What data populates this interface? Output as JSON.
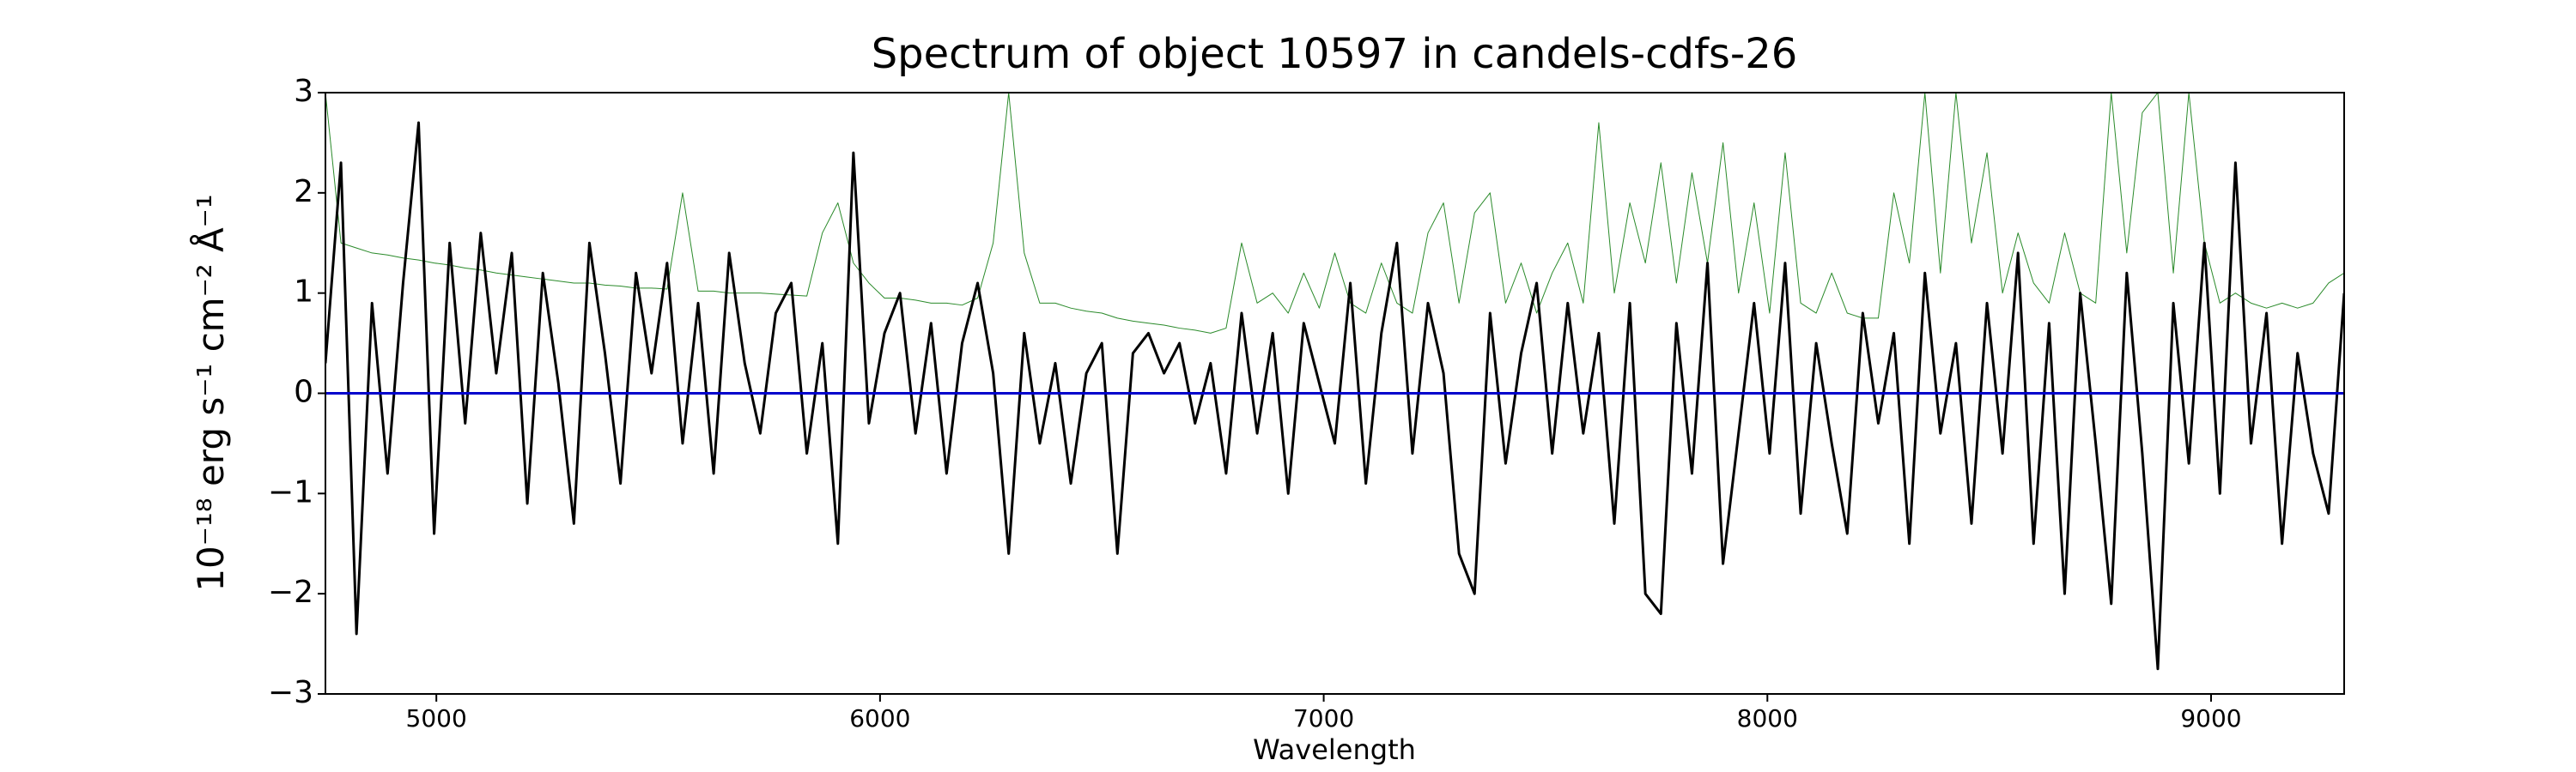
{
  "chart_data": {
    "type": "line",
    "title": "Spectrum of object 10597 in candels-cdfs-26",
    "xlabel": "Wavelength",
    "ylabel": "10⁻¹⁸ erg s⁻¹ cm⁻² Å⁻¹",
    "xlim": [
      4750,
      9300
    ],
    "ylim": [
      -3,
      3
    ],
    "xticks": [
      5000,
      6000,
      7000,
      8000,
      9000
    ],
    "yticks": [
      {
        "value": -3,
        "label": "−3"
      },
      {
        "value": -2,
        "label": "−2"
      },
      {
        "value": -1,
        "label": "−1"
      },
      0,
      1,
      2,
      3
    ],
    "grid": false,
    "x": [
      4750,
      4785,
      4820,
      4855,
      4890,
      4925,
      4960,
      4995,
      5030,
      5065,
      5100,
      5135,
      5170,
      5205,
      5240,
      5275,
      5310,
      5345,
      5380,
      5415,
      5450,
      5485,
      5520,
      5555,
      5590,
      5625,
      5660,
      5695,
      5730,
      5765,
      5800,
      5835,
      5870,
      5905,
      5940,
      5975,
      6010,
      6045,
      6080,
      6115,
      6150,
      6185,
      6220,
      6255,
      6290,
      6325,
      6360,
      6395,
      6430,
      6465,
      6500,
      6535,
      6570,
      6605,
      6640,
      6675,
      6710,
      6745,
      6780,
      6815,
      6850,
      6885,
      6920,
      6955,
      6990,
      7025,
      7060,
      7095,
      7130,
      7165,
      7200,
      7235,
      7270,
      7305,
      7340,
      7375,
      7410,
      7445,
      7480,
      7515,
      7550,
      7585,
      7620,
      7655,
      7690,
      7725,
      7760,
      7795,
      7830,
      7865,
      7900,
      7935,
      7970,
      8005,
      8040,
      8075,
      8110,
      8145,
      8180,
      8215,
      8250,
      8285,
      8320,
      8355,
      8390,
      8425,
      8460,
      8495,
      8530,
      8565,
      8600,
      8635,
      8670,
      8705,
      8740,
      8775,
      8810,
      8845,
      8880,
      8915,
      8950,
      8985,
      9020,
      9055,
      9090,
      9125,
      9160,
      9195,
      9230,
      9265,
      9300
    ],
    "series": [
      {
        "color": "#2a8a2a",
        "width": 1,
        "values": [
          3.0,
          1.5,
          1.45,
          1.4,
          1.38,
          1.35,
          1.33,
          1.3,
          1.28,
          1.25,
          1.23,
          1.2,
          1.18,
          1.16,
          1.14,
          1.12,
          1.1,
          1.1,
          1.08,
          1.07,
          1.05,
          1.05,
          1.04,
          2.0,
          1.02,
          1.02,
          1.0,
          1.0,
          1.0,
          0.99,
          0.98,
          0.97,
          1.6,
          1.9,
          1.3,
          1.1,
          0.95,
          0.95,
          0.93,
          0.9,
          0.9,
          0.88,
          0.95,
          1.5,
          3.0,
          1.4,
          0.9,
          0.9,
          0.85,
          0.82,
          0.8,
          0.75,
          0.72,
          0.7,
          0.68,
          0.65,
          0.63,
          0.6,
          0.65,
          1.5,
          0.9,
          1.0,
          0.8,
          1.2,
          0.85,
          1.4,
          0.9,
          0.8,
          1.3,
          0.9,
          0.8,
          1.6,
          1.9,
          0.9,
          1.8,
          2.0,
          0.9,
          1.3,
          0.8,
          1.2,
          1.5,
          0.9,
          2.7,
          1.0,
          1.9,
          1.3,
          2.3,
          1.1,
          2.2,
          1.3,
          2.5,
          1.0,
          1.9,
          0.8,
          2.4,
          0.9,
          0.8,
          1.2,
          0.8,
          0.75,
          0.75,
          2.0,
          1.3,
          3.0,
          1.2,
          3.0,
          1.5,
          2.4,
          1.0,
          1.6,
          1.1,
          0.9,
          1.6,
          1.0,
          0.9,
          3.0,
          1.4,
          2.8,
          3.0,
          1.2,
          3.0,
          1.5,
          0.9,
          1.0,
          0.9,
          0.85,
          0.9,
          0.85,
          0.9,
          1.1,
          1.2
        ]
      },
      {
        "color": "#000000",
        "width": 3,
        "values": [
          0.3,
          2.3,
          -2.4,
          0.9,
          -0.8,
          1.1,
          2.7,
          -1.4,
          1.5,
          -0.3,
          1.6,
          0.2,
          1.4,
          -1.1,
          1.2,
          0.1,
          -1.3,
          1.5,
          0.4,
          -0.9,
          1.2,
          0.2,
          1.3,
          -0.5,
          0.9,
          -0.8,
          1.4,
          0.3,
          -0.4,
          0.8,
          1.1,
          -0.6,
          0.5,
          -1.5,
          2.4,
          -0.3,
          0.6,
          1.0,
          -0.4,
          0.7,
          -0.8,
          0.5,
          1.1,
          0.2,
          -1.6,
          0.6,
          -0.5,
          0.3,
          -0.9,
          0.2,
          0.5,
          -1.6,
          0.4,
          0.6,
          0.2,
          0.5,
          -0.3,
          0.3,
          -0.8,
          0.8,
          -0.4,
          0.6,
          -1.0,
          0.7,
          0.1,
          -0.5,
          1.1,
          -0.9,
          0.6,
          1.5,
          -0.6,
          0.9,
          0.2,
          -1.6,
          -2.0,
          0.8,
          -0.7,
          0.4,
          1.1,
          -0.6,
          0.9,
          -0.4,
          0.6,
          -1.3,
          0.9,
          -2.0,
          -2.2,
          0.7,
          -0.8,
          1.3,
          -1.7,
          -0.4,
          0.9,
          -0.6,
          1.3,
          -1.2,
          0.5,
          -0.5,
          -1.4,
          0.8,
          -0.3,
          0.6,
          -1.5,
          1.2,
          -0.4,
          0.5,
          -1.3,
          0.9,
          -0.6,
          1.4,
          -1.5,
          0.7,
          -2.0,
          1.0,
          -0.5,
          -2.1,
          1.2,
          -0.6,
          -2.75,
          0.9,
          -0.7,
          1.5,
          -1.0,
          2.3,
          -0.5,
          0.8,
          -1.5,
          0.4,
          -0.6,
          -1.2,
          1.0
        ]
      },
      {
        "color": "#0000cc",
        "width": 3,
        "x": [
          4750,
          9300
        ],
        "values": [
          0,
          0
        ]
      }
    ]
  }
}
